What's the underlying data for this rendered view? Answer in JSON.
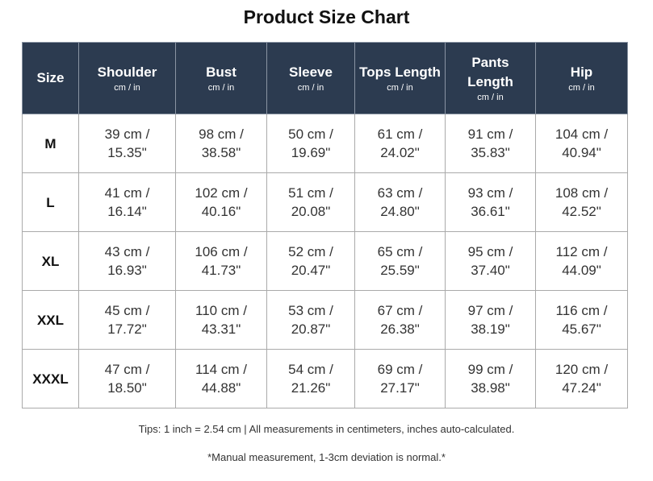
{
  "header": {
    "title": "Product Size Chart"
  },
  "table": {
    "columns": [
      {
        "label": "Size"
      },
      {
        "label": "Shoulder",
        "unit": "cm / in"
      },
      {
        "label": "Bust",
        "unit": "cm / in"
      },
      {
        "label": "Sleeve",
        "unit": "cm / in"
      },
      {
        "label": "Tops Length",
        "unit": "cm / in"
      },
      {
        "label": "Pants Length",
        "unit": "cm / in"
      },
      {
        "label": "Hip",
        "unit": "cm / in"
      }
    ],
    "rows": [
      [
        "M",
        "39 cm / 15.35\"",
        "98 cm / 38.58\"",
        "50 cm / 19.69\"",
        "61 cm / 24.02\"",
        "91 cm / 35.83\"",
        "104 cm / 40.94\""
      ],
      [
        "L",
        "41 cm / 16.14\"",
        "102 cm / 40.16\"",
        "51 cm / 20.08\"",
        "63 cm / 24.80\"",
        "93 cm / 36.61\"",
        "108 cm / 42.52\""
      ],
      [
        "XL",
        "43 cm / 16.93\"",
        "106 cm / 41.73\"",
        "52 cm / 20.47\"",
        "65 cm / 25.59\"",
        "95 cm / 37.40\"",
        "112 cm / 44.09\""
      ],
      [
        "XXL",
        "45 cm / 17.72\"",
        "110 cm / 43.31\"",
        "53 cm / 20.87\"",
        "67 cm / 26.38\"",
        "97 cm / 38.19\"",
        "116 cm / 45.67\""
      ],
      [
        "XXXL",
        "47 cm / 18.50\"",
        "114 cm / 44.88\"",
        "54 cm / 21.26\"",
        "69 cm / 27.17\"",
        "99 cm / 38.98\"",
        "120 cm / 47.24\""
      ]
    ]
  },
  "footer": {
    "tips": "Tips: 1 inch = 2.54 cm | All measurements in centimeters, inches auto-calculated.",
    "note": "*Manual measurement, 1-3cm deviation is normal.*"
  }
}
